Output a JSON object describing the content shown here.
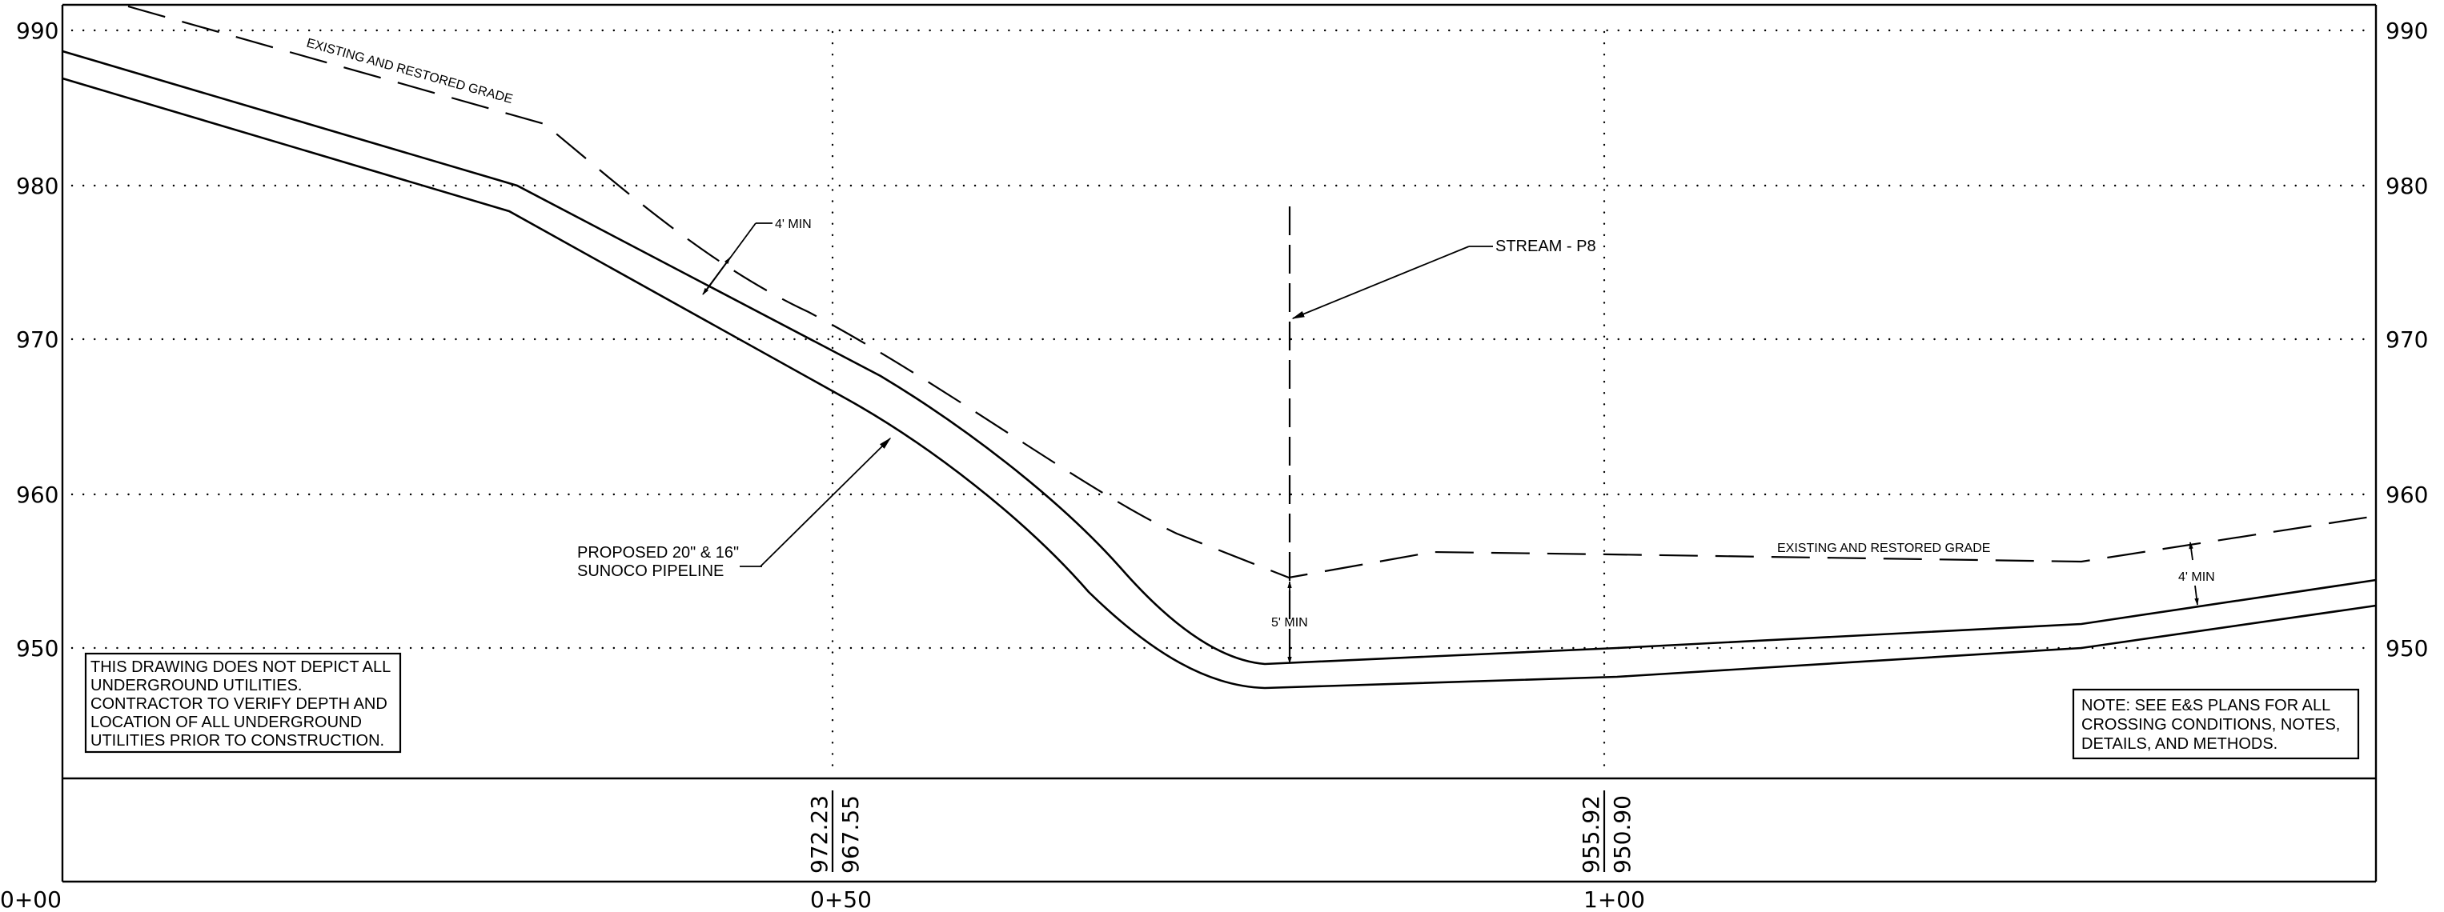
{
  "profile": {
    "elevation_labels": [
      "990",
      "980",
      "970",
      "960",
      "950"
    ],
    "station_labels": [
      "0+00",
      "0+50",
      "1+00"
    ],
    "station_values": [
      {
        "existing": "972.23",
        "proposed": "967.55"
      },
      {
        "existing": "955.92",
        "proposed": "950.90"
      }
    ]
  },
  "annotations": {
    "grade_upper": "EXISTING AND RESTORED GRADE",
    "grade_lower": "EXISTING AND RESTORED GRADE",
    "cover_upper": "4' MIN",
    "cover_right": "4' MIN",
    "cover_stream": "5' MIN",
    "stream": "STREAM - P8",
    "pipeline_line1": "PROPOSED 20\" & 16\"",
    "pipeline_line2": "SUNOCO PIPELINE"
  },
  "notes": {
    "utilities": [
      "THIS DRAWING DOES NOT DEPICT ALL",
      "UNDERGROUND UTILITIES.",
      "CONTRACTOR TO VERIFY DEPTH AND",
      "LOCATION OF ALL UNDERGROUND",
      "UTILITIES  PRIOR TO CONSTRUCTION."
    ],
    "es_plans": [
      "NOTE: SEE E&S PLANS FOR ALL",
      "CROSSING CONDITIONS, NOTES,",
      "DETAILS, AND METHODS."
    ]
  }
}
